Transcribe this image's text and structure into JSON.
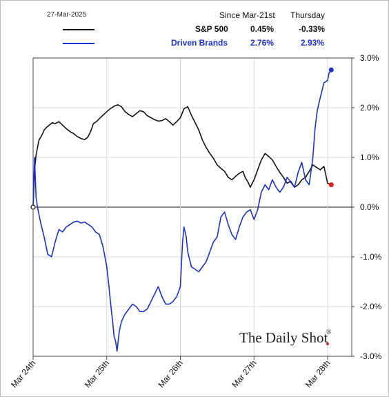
{
  "header": {
    "date": "27-Mar-2025",
    "col1_title": "Since Mar-21st",
    "col2_title": "Thursday"
  },
  "legend": [
    {
      "name": "S&P 500",
      "since": "0.45%",
      "thursday": "-0.33%",
      "color": "#111111"
    },
    {
      "name": "Driven Brands",
      "since": "2.76%",
      "thursday": "2.93%",
      "color": "#1a2fd6"
    }
  ],
  "watermark": "The Daily Shot",
  "watermark_mark": "®",
  "chart_data": {
    "type": "line",
    "x_tick_labels": [
      "Mar 24th",
      "Mar 25th",
      "Mar 26th",
      "Mar 27th",
      "Mar 28th"
    ],
    "y_tick_labels": [
      "3.0%",
      "2.0%",
      "1.0%",
      "0.0%",
      "-1.0%",
      "-2.0%",
      "-3.0%"
    ],
    "y_ticks": [
      3,
      2,
      1,
      0,
      -1,
      -2,
      -3
    ],
    "ylim": [
      -3.0,
      3.0
    ],
    "xlim": [
      0,
      4.3
    ],
    "series": [
      {
        "name": "S&P 500",
        "color": "#111111",
        "points": [
          [
            0.0,
            0.0
          ],
          [
            0.02,
            0.75
          ],
          [
            0.04,
            1.05
          ],
          [
            0.06,
            1.2
          ],
          [
            0.08,
            1.35
          ],
          [
            0.1,
            1.4
          ],
          [
            0.12,
            1.45
          ],
          [
            0.15,
            1.55
          ],
          [
            0.18,
            1.6
          ],
          [
            0.22,
            1.65
          ],
          [
            0.26,
            1.7
          ],
          [
            0.3,
            1.68
          ],
          [
            0.35,
            1.72
          ],
          [
            0.4,
            1.65
          ],
          [
            0.45,
            1.58
          ],
          [
            0.5,
            1.52
          ],
          [
            0.55,
            1.48
          ],
          [
            0.6,
            1.42
          ],
          [
            0.65,
            1.38
          ],
          [
            0.7,
            1.36
          ],
          [
            0.74,
            1.4
          ],
          [
            0.78,
            1.52
          ],
          [
            0.82,
            1.68
          ],
          [
            0.86,
            1.72
          ],
          [
            0.9,
            1.78
          ],
          [
            0.95,
            1.85
          ],
          [
            1.0,
            1.92
          ],
          [
            1.05,
            1.98
          ],
          [
            1.1,
            2.03
          ],
          [
            1.15,
            2.06
          ],
          [
            1.2,
            2.02
          ],
          [
            1.25,
            1.92
          ],
          [
            1.3,
            1.86
          ],
          [
            1.35,
            1.82
          ],
          [
            1.4,
            1.88
          ],
          [
            1.45,
            1.94
          ],
          [
            1.5,
            1.92
          ],
          [
            1.55,
            1.84
          ],
          [
            1.6,
            1.8
          ],
          [
            1.65,
            1.76
          ],
          [
            1.7,
            1.73
          ],
          [
            1.75,
            1.74
          ],
          [
            1.8,
            1.78
          ],
          [
            1.85,
            1.72
          ],
          [
            1.9,
            1.65
          ],
          [
            1.95,
            1.72
          ],
          [
            2.0,
            1.8
          ],
          [
            2.05,
            1.98
          ],
          [
            2.1,
            2.02
          ],
          [
            2.15,
            1.85
          ],
          [
            2.2,
            1.7
          ],
          [
            2.25,
            1.55
          ],
          [
            2.3,
            1.35
          ],
          [
            2.35,
            1.2
          ],
          [
            2.4,
            1.08
          ],
          [
            2.45,
            0.98
          ],
          [
            2.5,
            0.85
          ],
          [
            2.55,
            0.78
          ],
          [
            2.6,
            0.72
          ],
          [
            2.65,
            0.6
          ],
          [
            2.7,
            0.55
          ],
          [
            2.75,
            0.62
          ],
          [
            2.8,
            0.68
          ],
          [
            2.85,
            0.72
          ],
          [
            2.88,
            0.6
          ],
          [
            2.92,
            0.5
          ],
          [
            2.95,
            0.4
          ],
          [
            3.0,
            0.55
          ],
          [
            3.05,
            0.75
          ],
          [
            3.1,
            0.95
          ],
          [
            3.15,
            1.08
          ],
          [
            3.2,
            1.02
          ],
          [
            3.25,
            0.95
          ],
          [
            3.3,
            0.82
          ],
          [
            3.35,
            0.7
          ],
          [
            3.4,
            0.6
          ],
          [
            3.45,
            0.48
          ],
          [
            3.5,
            0.52
          ],
          [
            3.55,
            0.4
          ],
          [
            3.6,
            0.45
          ],
          [
            3.65,
            0.55
          ],
          [
            3.7,
            0.6
          ],
          [
            3.75,
            0.72
          ],
          [
            3.8,
            0.85
          ],
          [
            3.85,
            0.8
          ],
          [
            3.9,
            0.75
          ],
          [
            3.95,
            0.82
          ],
          [
            4.0,
            0.48
          ],
          [
            4.05,
            0.45
          ]
        ]
      },
      {
        "name": "Driven Brands",
        "color": "#1a2fd6",
        "points": [
          [
            0.0,
            0.0
          ],
          [
            0.02,
            1.0
          ],
          [
            0.04,
            0.2
          ],
          [
            0.06,
            0.0
          ],
          [
            0.1,
            -0.3
          ],
          [
            0.15,
            -0.6
          ],
          [
            0.2,
            -0.95
          ],
          [
            0.25,
            -1.0
          ],
          [
            0.3,
            -0.7
          ],
          [
            0.35,
            -0.45
          ],
          [
            0.4,
            -0.5
          ],
          [
            0.45,
            -0.4
          ],
          [
            0.5,
            -0.35
          ],
          [
            0.55,
            -0.3
          ],
          [
            0.6,
            -0.28
          ],
          [
            0.65,
            -0.32
          ],
          [
            0.7,
            -0.3
          ],
          [
            0.75,
            -0.35
          ],
          [
            0.8,
            -0.4
          ],
          [
            0.85,
            -0.5
          ],
          [
            0.9,
            -0.55
          ],
          [
            0.95,
            -0.8
          ],
          [
            1.0,
            -1.2
          ],
          [
            1.03,
            -1.6
          ],
          [
            1.05,
            -1.9
          ],
          [
            1.08,
            -2.3
          ],
          [
            1.1,
            -2.6
          ],
          [
            1.12,
            -2.7
          ],
          [
            1.14,
            -2.9
          ],
          [
            1.17,
            -2.5
          ],
          [
            1.2,
            -2.3
          ],
          [
            1.25,
            -2.15
          ],
          [
            1.3,
            -2.05
          ],
          [
            1.35,
            -1.95
          ],
          [
            1.4,
            -2.0
          ],
          [
            1.45,
            -2.1
          ],
          [
            1.5,
            -2.1
          ],
          [
            1.55,
            -2.05
          ],
          [
            1.6,
            -1.9
          ],
          [
            1.65,
            -1.75
          ],
          [
            1.7,
            -1.6
          ],
          [
            1.75,
            -1.8
          ],
          [
            1.8,
            -1.95
          ],
          [
            1.85,
            -1.95
          ],
          [
            1.9,
            -1.9
          ],
          [
            1.95,
            -1.8
          ],
          [
            2.0,
            -1.6
          ],
          [
            2.03,
            -0.7
          ],
          [
            2.05,
            -0.4
          ],
          [
            2.08,
            -0.6
          ],
          [
            2.1,
            -0.9
          ],
          [
            2.15,
            -1.2
          ],
          [
            2.2,
            -1.25
          ],
          [
            2.25,
            -1.3
          ],
          [
            2.3,
            -1.2
          ],
          [
            2.35,
            -1.1
          ],
          [
            2.4,
            -0.9
          ],
          [
            2.45,
            -0.7
          ],
          [
            2.5,
            -0.6
          ],
          [
            2.55,
            -0.2
          ],
          [
            2.6,
            -0.1
          ],
          [
            2.65,
            -0.35
          ],
          [
            2.7,
            -0.55
          ],
          [
            2.75,
            -0.65
          ],
          [
            2.8,
            -0.4
          ],
          [
            2.85,
            -0.2
          ],
          [
            2.9,
            -0.1
          ],
          [
            2.95,
            -0.05
          ],
          [
            3.0,
            -0.25
          ],
          [
            3.05,
            -0.05
          ],
          [
            3.1,
            0.3
          ],
          [
            3.15,
            0.45
          ],
          [
            3.2,
            0.35
          ],
          [
            3.25,
            0.55
          ],
          [
            3.3,
            0.4
          ],
          [
            3.35,
            0.3
          ],
          [
            3.4,
            0.4
          ],
          [
            3.45,
            0.6
          ],
          [
            3.5,
            0.5
          ],
          [
            3.55,
            0.4
          ],
          [
            3.6,
            0.7
          ],
          [
            3.65,
            0.9
          ],
          [
            3.7,
            0.55
          ],
          [
            3.75,
            0.45
          ],
          [
            3.8,
            1.0
          ],
          [
            3.83,
            1.6
          ],
          [
            3.86,
            1.95
          ],
          [
            3.9,
            2.2
          ],
          [
            3.95,
            2.5
          ],
          [
            4.0,
            2.55
          ],
          [
            4.02,
            2.7
          ],
          [
            4.05,
            2.76
          ]
        ]
      }
    ]
  }
}
